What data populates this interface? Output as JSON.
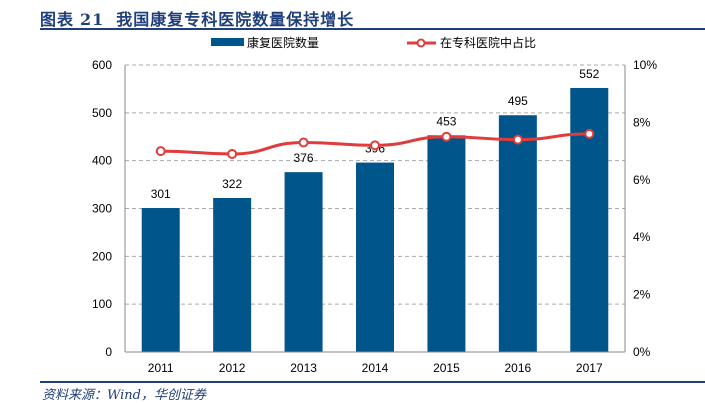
{
  "header": {
    "figure_label": "图表",
    "figure_number": "21",
    "title": "我国康复专科医院数量保持增长"
  },
  "source": "资料来源：Wind，华创证券",
  "colors": {
    "bar": "#00568a",
    "line": "#e03c3c",
    "title": "#1f3f7a"
  },
  "chart_data": {
    "type": "bar+line",
    "title": "我国康复专科医院数量保持增长",
    "categories": [
      "2011",
      "2012",
      "2013",
      "2014",
      "2015",
      "2016",
      "2017"
    ],
    "series": [
      {
        "name": "康复医院数量",
        "type": "bar",
        "axis": "left",
        "values": [
          301,
          322,
          376,
          396,
          453,
          495,
          552
        ]
      },
      {
        "name": "在专科医院中占比",
        "type": "line",
        "axis": "right",
        "values": [
          7.0,
          6.9,
          7.3,
          7.2,
          7.5,
          7.4,
          7.6
        ]
      }
    ],
    "left_axis": {
      "range": [
        0,
        600
      ],
      "ticks": [
        "0",
        "100",
        "200",
        "300",
        "400",
        "500",
        "600"
      ]
    },
    "right_axis": {
      "range": [
        0,
        10
      ],
      "ticks": [
        "0%",
        "2%",
        "4%",
        "6%",
        "8%",
        "10%"
      ]
    },
    "grid": "dashed horizontal",
    "legend": "top-center"
  }
}
